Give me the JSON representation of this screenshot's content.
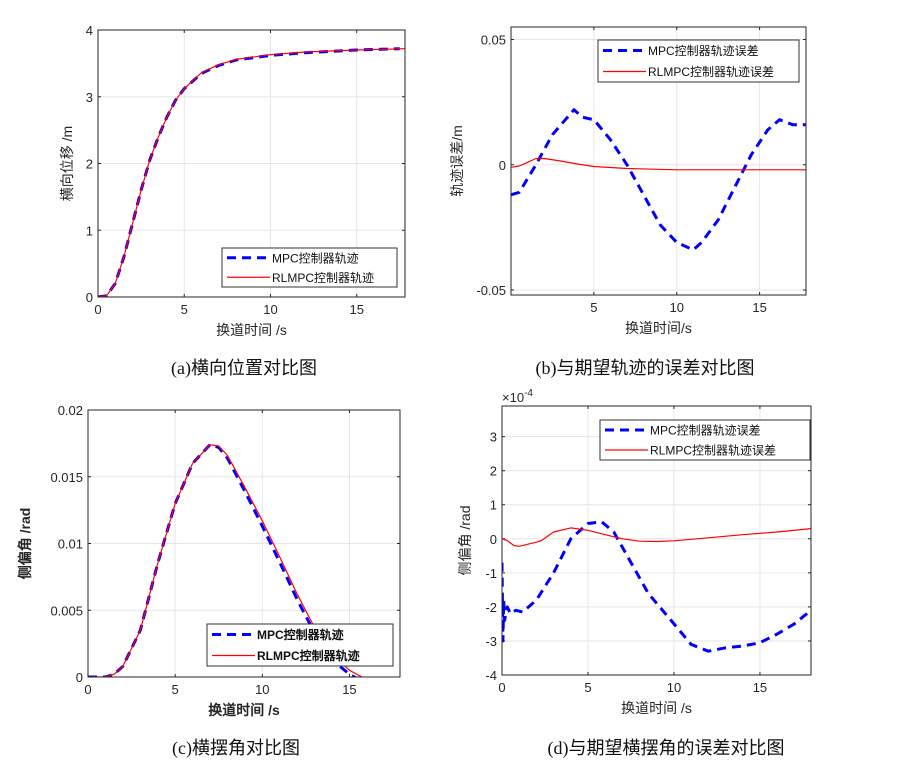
{
  "colors": {
    "mpc": "#0000ff",
    "rlmpc": "#ff0000",
    "grid": "#e6e6e6",
    "axis": "#262626"
  },
  "chart_data": [
    {
      "type": "line",
      "caption": "(a)横向位置对比图",
      "xlabel": "换道时间 /s",
      "ylabel": "横向位移 /m",
      "xlim": [
        0,
        17.8
      ],
      "ylim": [
        0,
        4
      ],
      "xticks": [
        0,
        5,
        10,
        15
      ],
      "yticks": [
        0,
        1,
        2,
        3,
        4
      ],
      "grid": true,
      "legend": "bottom-right",
      "exponent": null,
      "bold_labels": false,
      "series": [
        {
          "name": "MPC控制器轨迹",
          "style": "dashed",
          "points": [
            [
              0,
              0
            ],
            [
              0.5,
              0.02
            ],
            [
              1,
              0.2
            ],
            [
              1.5,
              0.6
            ],
            [
              2,
              1.1
            ],
            [
              2.5,
              1.6
            ],
            [
              3,
              2.05
            ],
            [
              3.5,
              2.4
            ],
            [
              4,
              2.7
            ],
            [
              4.5,
              2.95
            ],
            [
              5,
              3.12
            ],
            [
              6,
              3.35
            ],
            [
              7,
              3.47
            ],
            [
              8,
              3.55
            ],
            [
              10,
              3.62
            ],
            [
              12,
              3.66
            ],
            [
              15,
              3.7
            ],
            [
              17.5,
              3.72
            ]
          ]
        },
        {
          "name": "RLMPC控制器轨迹",
          "style": "solid",
          "points": [
            [
              0,
              0
            ],
            [
              0.5,
              0.02
            ],
            [
              1,
              0.2
            ],
            [
              1.5,
              0.6
            ],
            [
              2,
              1.1
            ],
            [
              2.5,
              1.6
            ],
            [
              3,
              2.05
            ],
            [
              3.5,
              2.4
            ],
            [
              4,
              2.7
            ],
            [
              4.5,
              2.95
            ],
            [
              5,
              3.12
            ],
            [
              6,
              3.36
            ],
            [
              7,
              3.48
            ],
            [
              8,
              3.56
            ],
            [
              10,
              3.63
            ],
            [
              12,
              3.67
            ],
            [
              15,
              3.7
            ],
            [
              17.8,
              3.72
            ]
          ]
        }
      ]
    },
    {
      "type": "line",
      "caption": "(b)与期望轨迹的误差对比图",
      "xlabel": "换道时间/s",
      "ylabel": "轨迹误差/m",
      "xlim": [
        0,
        17.8
      ],
      "ylim": [
        -0.052,
        0.055
      ],
      "xticks": [
        5,
        10,
        15
      ],
      "yticks": [
        -0.05,
        0,
        0.05
      ],
      "grid": true,
      "legend": "top-right",
      "exponent": null,
      "bold_labels": false,
      "series": [
        {
          "name": "MPC控制器轨迹误差",
          "style": "dashed",
          "points": [
            [
              0,
              -0.012
            ],
            [
              0.5,
              -0.011
            ],
            [
              1.5,
              0.0
            ],
            [
              2.5,
              0.012
            ],
            [
              3.8,
              0.022
            ],
            [
              4.3,
              0.019
            ],
            [
              5,
              0.018
            ],
            [
              6,
              0.01
            ],
            [
              7,
              0.0
            ],
            [
              8,
              -0.012
            ],
            [
              9,
              -0.024
            ],
            [
              10,
              -0.031
            ],
            [
              11,
              -0.034
            ],
            [
              11.5,
              -0.031
            ],
            [
              12.5,
              -0.022
            ],
            [
              13.5,
              -0.009
            ],
            [
              14.5,
              0.004
            ],
            [
              15.5,
              0.014
            ],
            [
              16.2,
              0.018
            ],
            [
              17,
              0.016
            ],
            [
              17.8,
              0.016
            ]
          ]
        },
        {
          "name": "RLMPC控制器轨迹误差",
          "style": "solid",
          "points": [
            [
              0,
              -0.001
            ],
            [
              0.5,
              -0.0005
            ],
            [
              1,
              0.001
            ],
            [
              1.5,
              0.0025
            ],
            [
              2,
              0.0025
            ],
            [
              3,
              0.0015
            ],
            [
              4,
              0.0003
            ],
            [
              5,
              -0.0007
            ],
            [
              7,
              -0.0015
            ],
            [
              10,
              -0.002
            ],
            [
              17.8,
              -0.002
            ]
          ]
        }
      ]
    },
    {
      "type": "line",
      "caption": "(c)横摆角对比图",
      "xlabel": "换道时间 /s",
      "ylabel": "侧偏角 /rad",
      "xlim": [
        0,
        17.9
      ],
      "ylim": [
        0,
        0.02
      ],
      "xticks": [
        0,
        5,
        10,
        15
      ],
      "yticks": [
        0,
        0.005,
        0.01,
        0.015,
        0.02
      ],
      "grid": true,
      "legend": "bottom-right",
      "exponent": null,
      "bold_labels": true,
      "series": [
        {
          "name": "MPC控制器轨迹",
          "style": "dashed",
          "points": [
            [
              0,
              0
            ],
            [
              1,
              0
            ],
            [
              1.5,
              0.0002
            ],
            [
              2,
              0.0008
            ],
            [
              3,
              0.0035
            ],
            [
              4,
              0.0085
            ],
            [
              5,
              0.013
            ],
            [
              6,
              0.016
            ],
            [
              7,
              0.0174
            ],
            [
              7.5,
              0.0172
            ],
            [
              8,
              0.0164
            ],
            [
              9,
              0.0139
            ],
            [
              10,
              0.0113
            ],
            [
              11,
              0.0086
            ],
            [
              12,
              0.0058
            ],
            [
              13,
              0.0033
            ],
            [
              14,
              0.0013
            ],
            [
              15,
              0.0002
            ],
            [
              15.7,
              -0.0003
            ]
          ]
        },
        {
          "name": "RLMPC控制器轨迹",
          "style": "solid",
          "points": [
            [
              0,
              0
            ],
            [
              1,
              0
            ],
            [
              1.5,
              0.0002
            ],
            [
              2,
              0.0008
            ],
            [
              3,
              0.0035
            ],
            [
              4,
              0.0085
            ],
            [
              5,
              0.013
            ],
            [
              6,
              0.016
            ],
            [
              7,
              0.0174
            ],
            [
              7.5,
              0.0173
            ],
            [
              8,
              0.0166
            ],
            [
              9,
              0.0142
            ],
            [
              10,
              0.0117
            ],
            [
              11,
              0.009
            ],
            [
              12,
              0.0062
            ],
            [
              13,
              0.0037
            ],
            [
              14,
              0.0017
            ],
            [
              15,
              0.0005
            ],
            [
              16,
              -0.0002
            ]
          ]
        }
      ]
    },
    {
      "type": "line",
      "caption": "(d)与期望横摆角的误差对比图",
      "xlabel": "换道时间 /s",
      "ylabel": "侧偏角 /rad",
      "xlim": [
        0,
        17.97
      ],
      "ylim": [
        -4,
        3.9
      ],
      "xticks": [
        0,
        5,
        10,
        15
      ],
      "yticks": [
        -4,
        -3,
        -2,
        -1,
        0,
        1,
        2,
        3
      ],
      "grid": true,
      "legend": "top-right",
      "exponent": "×10",
      "exponent_power": "-4",
      "bold_labels": false,
      "series": [
        {
          "name": "MPC控制器轨迹误差",
          "style": "dashed",
          "points": [
            [
              0,
              -0.7
            ],
            [
              0.05,
              -3
            ],
            [
              0.1,
              -1.8
            ],
            [
              0.15,
              -2.4
            ],
            [
              0.3,
              -2
            ],
            [
              0.5,
              -2.2
            ],
            [
              0.8,
              -2.1
            ],
            [
              1.2,
              -2.15
            ],
            [
              2,
              -1.8
            ],
            [
              3,
              -1
            ],
            [
              4,
              0
            ],
            [
              5,
              0.45
            ],
            [
              5.8,
              0.5
            ],
            [
              6.5,
              0.2
            ],
            [
              7.5,
              -0.7
            ],
            [
              8.5,
              -1.6
            ],
            [
              10,
              -2.5
            ],
            [
              11,
              -3.1
            ],
            [
              12,
              -3.3
            ],
            [
              13,
              -3.2
            ],
            [
              14,
              -3.15
            ],
            [
              15,
              -3.05
            ],
            [
              16,
              -2.8
            ],
            [
              17,
              -2.5
            ],
            [
              17.97,
              -2.1
            ]
          ]
        },
        {
          "name": "RLMPC控制器轨迹误差",
          "style": "solid",
          "points": [
            [
              0,
              0
            ],
            [
              0.3,
              -0.05
            ],
            [
              0.7,
              -0.2
            ],
            [
              1,
              -0.22
            ],
            [
              2,
              -0.1
            ],
            [
              2.3,
              -0.05
            ],
            [
              3,
              0.2
            ],
            [
              4,
              0.32
            ],
            [
              5,
              0.25
            ],
            [
              6,
              0.12
            ],
            [
              7,
              0
            ],
            [
              8,
              -0.07
            ],
            [
              9,
              -0.08
            ],
            [
              10,
              -0.06
            ],
            [
              12,
              0.03
            ],
            [
              14,
              0.12
            ],
            [
              16,
              0.2
            ],
            [
              17.97,
              0.3
            ]
          ]
        }
      ]
    }
  ]
}
